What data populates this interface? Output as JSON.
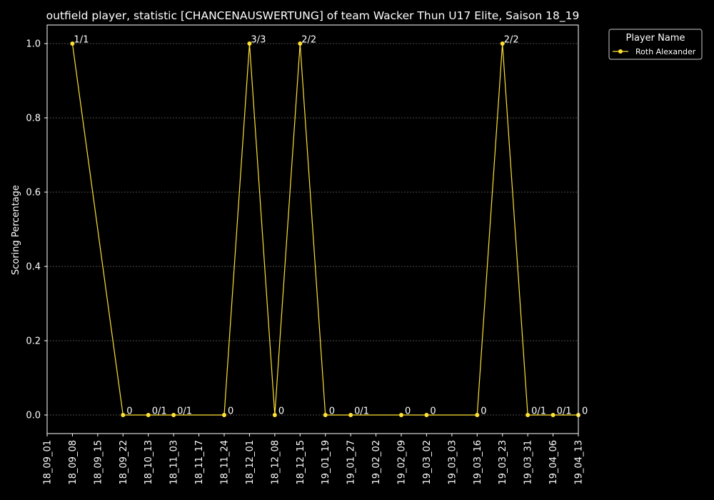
{
  "chart_data": {
    "type": "line",
    "title": "outfield player, statistic [CHANCENAUSWERTUNG] of team Wacker Thun U17 Elite, Saison 18_19",
    "xlabel": "",
    "ylabel": "Scoring Percentage",
    "ylim": [
      -0.05,
      1.05
    ],
    "yticks": [
      "0.0",
      "0.2",
      "0.4",
      "0.6",
      "0.8",
      "1.0"
    ],
    "ytick_values": [
      0.0,
      0.2,
      0.4,
      0.6,
      0.8,
      1.0
    ],
    "categories": [
      "18_09_01",
      "18_09_08",
      "18_09_15",
      "18_09_22",
      "18_10_13",
      "18_11_03",
      "18_11_17",
      "18_11_24",
      "18_12_01",
      "18_12_08",
      "18_12_15",
      "19_01_19",
      "19_01_27",
      "19_02_02",
      "19_02_09",
      "19_03_02",
      "19_03_03",
      "19_03_16",
      "19_03_23",
      "19_03_31",
      "19_04_06",
      "19_04_13"
    ],
    "grid": true,
    "legend": {
      "title": "Player Name",
      "placement": "top-right outside"
    },
    "series": [
      {
        "name": "Roth Alexander",
        "color": "#ffe135",
        "points": [
          {
            "x": "18_09_08",
            "y": 1.0,
            "label": "1/1"
          },
          {
            "x": "18_09_22",
            "y": 0.0,
            "label": "0"
          },
          {
            "x": "18_10_13",
            "y": 0.0,
            "label": "0/1"
          },
          {
            "x": "18_11_03",
            "y": 0.0,
            "label": "0/1"
          },
          {
            "x": "18_11_24",
            "y": 0.0,
            "label": "0"
          },
          {
            "x": "18_12_01",
            "y": 1.0,
            "label": "3/3"
          },
          {
            "x": "18_12_08",
            "y": 0.0,
            "label": "0"
          },
          {
            "x": "18_12_15",
            "y": 1.0,
            "label": "2/2"
          },
          {
            "x": "19_01_19",
            "y": 0.0,
            "label": "0"
          },
          {
            "x": "19_01_27",
            "y": 0.0,
            "label": "0/1"
          },
          {
            "x": "19_02_09",
            "y": 0.0,
            "label": "0"
          },
          {
            "x": "19_03_02",
            "y": 0.0,
            "label": "0"
          },
          {
            "x": "19_03_16",
            "y": 0.0,
            "label": "0"
          },
          {
            "x": "19_03_23",
            "y": 1.0,
            "label": "2/2"
          },
          {
            "x": "19_03_31",
            "y": 0.0,
            "label": "0/1"
          },
          {
            "x": "19_04_06",
            "y": 0.0,
            "label": "0/1"
          },
          {
            "x": "19_04_13",
            "y": 0.0,
            "label": "0"
          }
        ]
      }
    ]
  }
}
